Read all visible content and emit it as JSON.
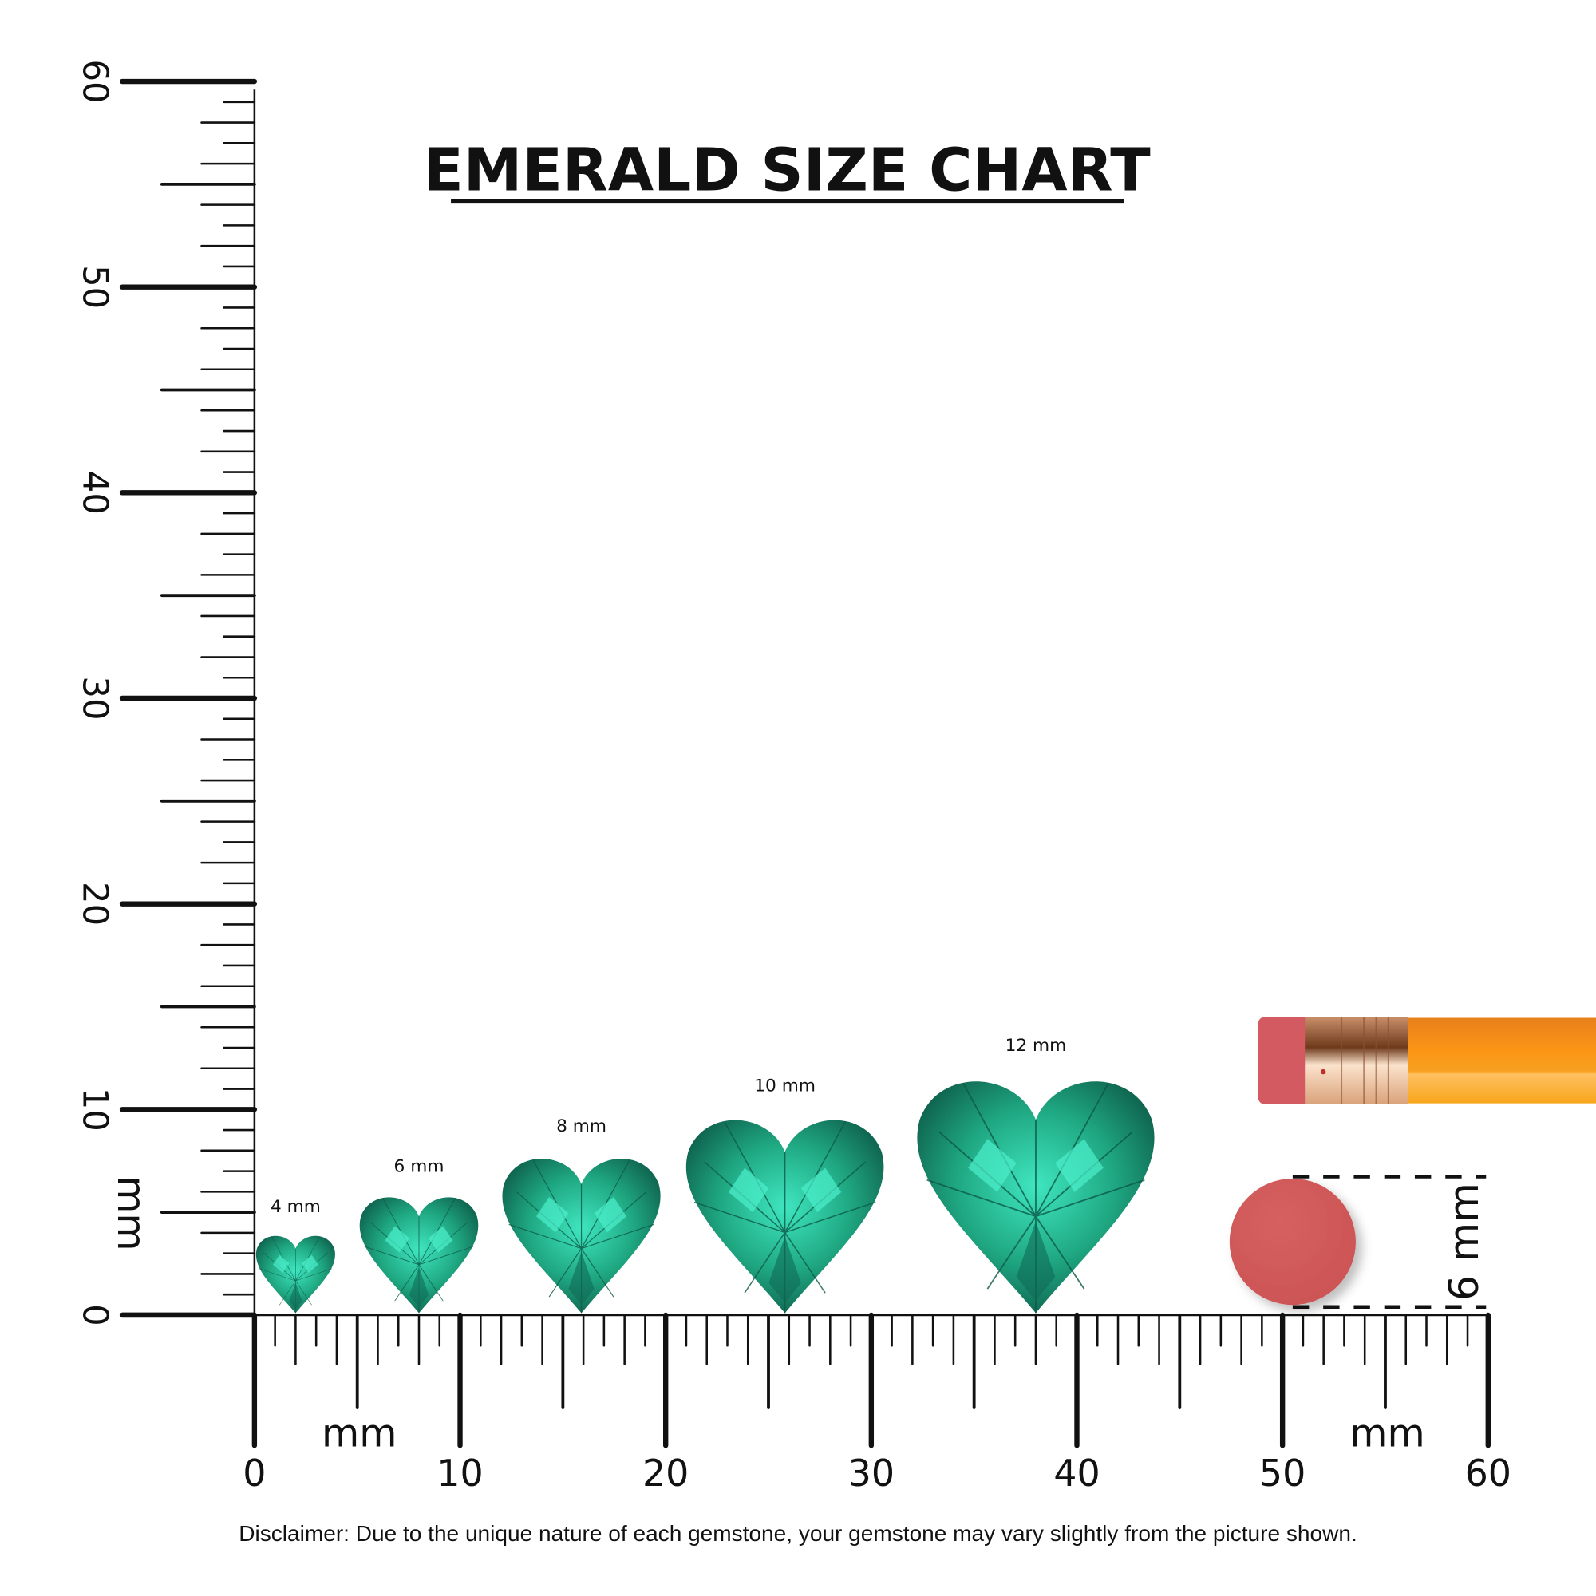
{
  "chart_data": {
    "type": "size-comparison",
    "title": "EMERALD SIZE CHART",
    "unit": "mm",
    "x_axis": {
      "label": "mm",
      "range": [
        0,
        60
      ],
      "ticks": [
        "0",
        "10",
        "20",
        "30",
        "40",
        "50",
        "60"
      ],
      "second_label": "mm"
    },
    "y_axis": {
      "label": "mm",
      "range": [
        0,
        60
      ],
      "ticks": [
        "0",
        "10",
        "20",
        "30",
        "40",
        "50",
        "60"
      ]
    },
    "gems": [
      {
        "label": "4 mm",
        "size_mm": 4
      },
      {
        "label": "6 mm",
        "size_mm": 6
      },
      {
        "label": "8 mm",
        "size_mm": 8
      },
      {
        "label": "10 mm",
        "size_mm": 10
      },
      {
        "label": "12 mm",
        "size_mm": 12
      }
    ],
    "gem_shape": "heart",
    "reference": {
      "object": "pencil eraser",
      "label": "6 mm",
      "size_mm": 6
    },
    "colors": {
      "gem": "#1fa882",
      "gem_light": "#3fe6c0",
      "gem_dark": "#0e5e4a",
      "eraser": "#d25a5a",
      "pencil": "#f7931e",
      "ferrule": "#d9a27a"
    }
  },
  "disclaimer": "Disclaimer: Due to the unique nature of each gemstone, your gemstone may vary slightly from the picture shown."
}
